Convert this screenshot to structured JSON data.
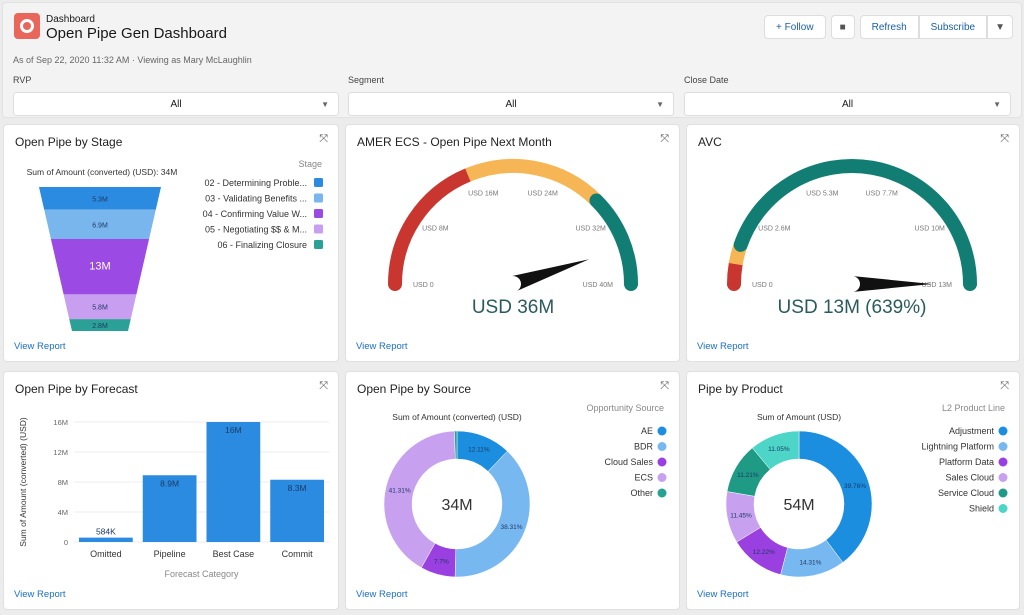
{
  "header": {
    "breadcrumb": "Dashboard",
    "title": "Open Pipe Gen Dashboard",
    "as_of": "As of Sep 22, 2020 11:32 AM · Viewing as Mary McLaughlin",
    "icon": "dashboard-icon",
    "accent": "#e8665a",
    "buttons": {
      "follow": "+ Follow",
      "refresh": "Refresh",
      "subscribe": "Subscribe",
      "more": "▼"
    }
  },
  "filters": [
    {
      "label": "RVP",
      "value": "All"
    },
    {
      "label": "Segment",
      "value": "All"
    },
    {
      "label": "Close Date",
      "value": "All"
    }
  ],
  "view_report": "View Report",
  "chart_data": [
    {
      "type": "funnel",
      "title": "Open Pipe by Stage",
      "subtitle": "Sum of Amount (converted) (USD): 34M",
      "legend_title": "Stage",
      "legend": "right",
      "categories": [
        "02 - Determining Proble...",
        "03 - Validating Benefits ...",
        "04 - Confirming Value W...",
        "05 - Negotiating $$ & M...",
        "06 - Finalizing Closure"
      ],
      "values": [
        5.3,
        6.9,
        13,
        5.8,
        2.8
      ],
      "labels": [
        "5.3M",
        "6.9M",
        "13M",
        "5.8M",
        "2.8M"
      ],
      "colors": [
        "#2a8be0",
        "#7ab6ee",
        "#9b4be3",
        "#c89ef0",
        "#2aa096"
      ]
    },
    {
      "type": "gauge",
      "title": "AMER ECS - Open Pipe Next Month",
      "min": 0,
      "max": 40,
      "value": 36,
      "value_label": "USD 36M",
      "ticks": [
        "USD 0",
        "USD 8M",
        "USD 16M",
        "USD 24M",
        "USD 32M",
        "USD 40M"
      ],
      "bands": [
        {
          "from": 0,
          "to": 15,
          "color": "#c9362f"
        },
        {
          "from": 15,
          "to": 30,
          "color": "#f6b655"
        },
        {
          "from": 30,
          "to": 40,
          "color": "#127d73"
        }
      ]
    },
    {
      "type": "gauge",
      "title": "AVC",
      "min": 0,
      "max": 13,
      "value": 13,
      "value_label": "USD 13M (639%)",
      "ticks": [
        "USD 0",
        "USD 2.6M",
        "USD 5.3M",
        "USD 7.7M",
        "USD 10M",
        "USD 13M"
      ],
      "bands": [
        {
          "from": 0,
          "to": 0.7,
          "color": "#c9362f"
        },
        {
          "from": 0.7,
          "to": 1.4,
          "color": "#f6b655"
        },
        {
          "from": 1.4,
          "to": 13,
          "color": "#127d73"
        }
      ]
    },
    {
      "type": "bar",
      "title": "Open Pipe by Forecast",
      "xlabel": "Forecast Category",
      "ylabel": "Sum of Amount (converted) (USD)",
      "categories": [
        "Omitted",
        "Pipeline",
        "Best Case",
        "Commit"
      ],
      "values": [
        0.584,
        8.9,
        16,
        8.3
      ],
      "labels": [
        "584K",
        "8.9M",
        "16M",
        "8.3M"
      ],
      "ylim": [
        0,
        16
      ],
      "yticks": [
        "0",
        "4M",
        "8M",
        "12M",
        "16M"
      ],
      "grid": true,
      "color": "#2a8be0"
    },
    {
      "type": "donut",
      "title": "Open Pipe by Source",
      "subtitle": "Sum of Amount (converted) (USD)",
      "center_label": "34M",
      "legend_title": "Opportunity Source",
      "legend": "right",
      "categories": [
        "AE",
        "BDR",
        "Cloud Sales",
        "ECS",
        "Other"
      ],
      "values": [
        12.11,
        38.31,
        7.7,
        41.31,
        0.57
      ],
      "labels": [
        "12.11%",
        "38.31%",
        "7.7%",
        "41.31%",
        ""
      ],
      "colors": [
        "#1b8ee0",
        "#78b8f0",
        "#9a3fe0",
        "#c8a0f0",
        "#26a192"
      ]
    },
    {
      "type": "donut",
      "title": "Pipe by Product",
      "subtitle": "Sum of Amount (USD)",
      "center_label": "54M",
      "legend_title": "L2 Product Line",
      "legend": "right",
      "categories": [
        "Adjustment",
        "Lightning Platform",
        "Platform Data",
        "Sales Cloud",
        "Service Cloud",
        "Shield"
      ],
      "values": [
        39.76,
        14.31,
        12.22,
        11.45,
        11.21,
        11.05
      ],
      "labels": [
        "39.76%",
        "14.31%",
        "12.22%",
        "11.45%",
        "11.21%",
        "11.05%"
      ],
      "colors": [
        "#1b8ee0",
        "#78b8f0",
        "#9a3fe0",
        "#c8a0f0",
        "#1e9a85",
        "#4dd6c8"
      ]
    }
  ]
}
